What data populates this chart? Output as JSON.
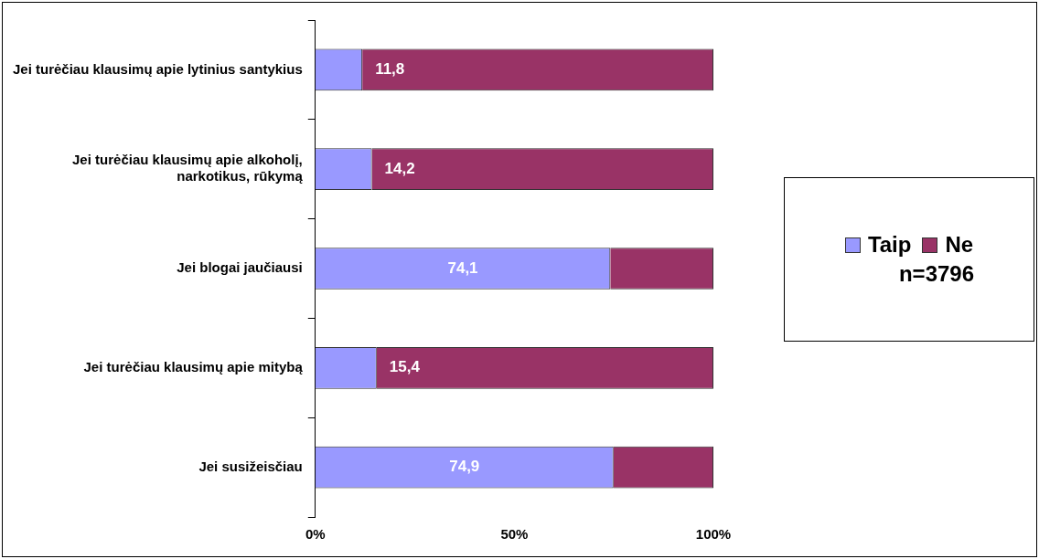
{
  "chart_data": {
    "type": "bar",
    "orientation": "horizontal",
    "stacked": true,
    "categories": [
      "Jei turėčiau klausimų apie lytinius santykius",
      "Jei turėčiau klausimų apie alkoholį, narkotikus, rūkymą",
      "Jei blogai jaučiausi",
      "Jei turėčiau klausimų apie mitybą",
      "Jei susižeisčiau"
    ],
    "series": [
      {
        "name": "Taip",
        "color": "#9999ff",
        "values": [
          11.8,
          14.2,
          74.1,
          15.4,
          74.9
        ],
        "value_labels": [
          "11,8",
          "14,2",
          "74,1",
          "15,4",
          "74,9"
        ]
      },
      {
        "name": "Ne",
        "color": "#993366",
        "values": [
          88.2,
          85.8,
          25.9,
          84.6,
          25.1
        ]
      }
    ],
    "xlim": [
      0,
      100
    ],
    "xticks": [
      {
        "value": 0,
        "label": "0%"
      },
      {
        "value": 50,
        "label": "50%"
      },
      {
        "value": 100,
        "label": "100%"
      }
    ],
    "grid": false,
    "legend": "right",
    "annotations": [
      "n=3796"
    ]
  }
}
